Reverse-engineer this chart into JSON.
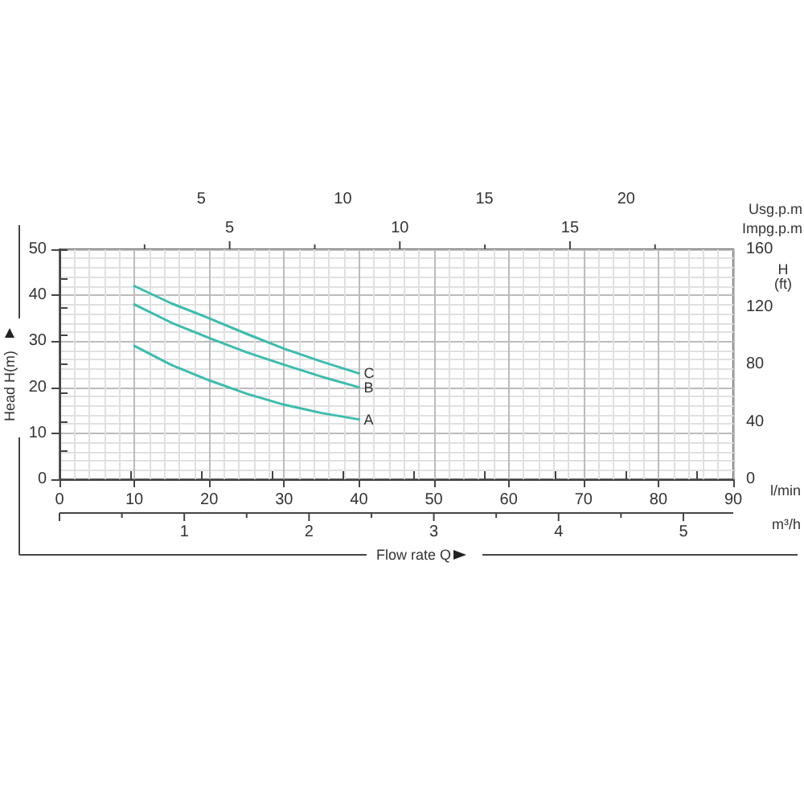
{
  "chart_data": {
    "type": "line",
    "xlabel": "Flow rate Q",
    "ylabel": "Head H(m)",
    "y2label": "H (ft)",
    "x2label": "Usg.p.m",
    "annotations": [
      "l/min",
      "Impg.p.m",
      "m³/h",
      "5",
      "10",
      "15",
      "1",
      "2",
      "3",
      "4",
      "5"
    ],
    "x": [
      10,
      15,
      20,
      25,
      30,
      35,
      40
    ],
    "series": [
      {
        "name": "A",
        "color": "#3dbcae",
        "values": [
          29,
          24.8,
          21.5,
          18.6,
          16.2,
          14.4,
          13
        ]
      },
      {
        "name": "B",
        "color": "#3dbcae",
        "values": [
          38,
          34,
          30.7,
          27.6,
          24.9,
          22.3,
          20
        ]
      },
      {
        "name": "C",
        "color": "#3dbcae",
        "values": [
          42,
          38.2,
          35,
          31.6,
          28.4,
          25.6,
          23
        ]
      }
    ],
    "xlim": [
      0,
      90
    ],
    "xticks": [
      0,
      10,
      20,
      30,
      40,
      50,
      60,
      70,
      80,
      90
    ],
    "ylim": [
      0,
      50
    ],
    "yticks": [
      0,
      10,
      20,
      30,
      40,
      50
    ],
    "y2lim": [
      0,
      160
    ],
    "y2ticks": [
      0,
      {
        "value": 20,
        "label": null
      },
      40,
      {
        "value": 60,
        "label": null
      },
      80,
      {
        "value": 100,
        "label": null
      },
      120,
      {
        "value": 140,
        "label": null
      },
      160
    ],
    "x2lim": [
      0,
      23.78
    ],
    "x2ticks": [
      {
        "value": 0,
        "label": null
      },
      {
        "value": 2.5,
        "label": null
      },
      5,
      {
        "value": 7.5,
        "label": null
      },
      10,
      {
        "value": 12.5,
        "label": null
      },
      15,
      {
        "value": 17.5,
        "label": null
      },
      20,
      {
        "value": 22.5,
        "label": null
      }
    ],
    "grid": true,
    "legend": false,
    "marker": "none",
    "line_style": "solid"
  }
}
